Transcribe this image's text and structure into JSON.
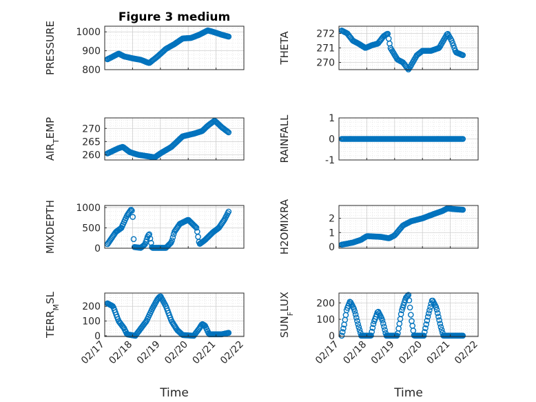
{
  "figure": {
    "title": "Figure 3 medium",
    "marker_color": "#0072BD",
    "axis_color": "#262626",
    "grid_color": "#dcdcdc"
  },
  "chart_data": [
    {
      "type": "scatter",
      "panel": "top-left",
      "title": "Figure 3 medium",
      "ylabel": "PRESSURE",
      "ylabel_parts": [
        {
          "t": "PRESSURE"
        }
      ],
      "ylim": [
        800,
        1030
      ],
      "yticks": [
        800,
        900,
        1000
      ],
      "xlim": [
        0,
        5
      ],
      "xtick_labels": [],
      "x_range": [
        0.1,
        4.45
      ],
      "anchors": [
        [
          0.1,
          855
        ],
        [
          0.3,
          870
        ],
        [
          0.5,
          885
        ],
        [
          0.7,
          870
        ],
        [
          1.0,
          860
        ],
        [
          1.3,
          852
        ],
        [
          1.5,
          840
        ],
        [
          1.6,
          835
        ],
        [
          1.9,
          870
        ],
        [
          2.2,
          910
        ],
        [
          2.5,
          935
        ],
        [
          2.8,
          965
        ],
        [
          3.1,
          968
        ],
        [
          3.4,
          985
        ],
        [
          3.7,
          1008
        ],
        [
          3.9,
          1000
        ],
        [
          4.2,
          985
        ],
        [
          4.45,
          975
        ]
      ],
      "npoints": 130
    },
    {
      "type": "scatter",
      "panel": "top-right",
      "ylabel": "THETA",
      "ylabel_parts": [
        {
          "t": "THETA"
        }
      ],
      "ylim": [
        269.5,
        272.5
      ],
      "yticks": [
        270,
        271,
        272
      ],
      "xlim": [
        0,
        5
      ],
      "xtick_labels": [],
      "x_range": [
        0.1,
        4.45
      ],
      "anchors": [
        [
          0.1,
          272.2
        ],
        [
          0.3,
          272.0
        ],
        [
          0.5,
          271.5
        ],
        [
          0.7,
          271.3
        ],
        [
          0.95,
          271.0
        ],
        [
          1.2,
          271.2
        ],
        [
          1.4,
          271.3
        ],
        [
          1.6,
          271.8
        ],
        [
          1.75,
          272.0
        ],
        [
          1.85,
          271.0
        ],
        [
          2.1,
          270.2
        ],
        [
          2.3,
          270.0
        ],
        [
          2.5,
          269.5
        ],
        [
          2.8,
          270.5
        ],
        [
          3.0,
          270.8
        ],
        [
          3.3,
          270.8
        ],
        [
          3.6,
          271.0
        ],
        [
          3.9,
          272.0
        ],
        [
          4.05,
          271.5
        ],
        [
          4.2,
          270.7
        ],
        [
          4.45,
          270.5
        ]
      ],
      "npoints": 130
    },
    {
      "type": "scatter",
      "panel": "row2-left",
      "ylabel": "AIR_TEMP",
      "ylabel_parts": [
        {
          "t": "AIR"
        },
        {
          "t": "T",
          "sub": true
        },
        {
          "t": "EMP"
        }
      ],
      "ylim": [
        258,
        274
      ],
      "yticks": [
        260,
        265,
        270
      ],
      "xlim": [
        0,
        5
      ],
      "xtick_labels": [],
      "x_range": [
        0.1,
        4.45
      ],
      "anchors": [
        [
          0.1,
          260.5
        ],
        [
          0.5,
          262.5
        ],
        [
          0.65,
          263.0
        ],
        [
          0.9,
          261.0
        ],
        [
          1.2,
          260.0
        ],
        [
          1.5,
          259.5
        ],
        [
          1.8,
          259.0
        ],
        [
          2.0,
          260.5
        ],
        [
          2.4,
          263.0
        ],
        [
          2.8,
          267.0
        ],
        [
          3.2,
          268.0
        ],
        [
          3.5,
          269.0
        ],
        [
          3.7,
          271.0
        ],
        [
          3.95,
          273.0
        ],
        [
          4.2,
          270.5
        ],
        [
          4.45,
          268.5
        ]
      ],
      "npoints": 130
    },
    {
      "type": "scatter",
      "panel": "row2-right",
      "ylabel": "RAINFALL",
      "ylabel_parts": [
        {
          "t": "RAINFALL"
        }
      ],
      "ylim": [
        -1,
        1
      ],
      "yticks": [
        -1,
        0,
        1
      ],
      "xlim": [
        0,
        5
      ],
      "xtick_labels": [],
      "x_range": [
        0.1,
        4.45
      ],
      "anchors": [
        [
          0.1,
          0
        ],
        [
          4.45,
          0
        ]
      ],
      "npoints": 120
    },
    {
      "type": "scatter",
      "panel": "row3-left",
      "ylabel": "MIXDEPTH",
      "ylabel_parts": [
        {
          "t": "MIXDEPTH"
        }
      ],
      "ylim": [
        0,
        1050
      ],
      "yticks": [
        0,
        500,
        1000
      ],
      "xlim": [
        0,
        5
      ],
      "xtick_labels": [],
      "x_range": [
        0.1,
        4.45
      ],
      "anchors": [
        [
          0.1,
          100
        ],
        [
          0.4,
          400
        ],
        [
          0.6,
          500
        ],
        [
          0.8,
          800
        ],
        [
          0.95,
          950
        ],
        [
          1.0,
          900
        ],
        [
          1.05,
          30
        ],
        [
          1.3,
          10
        ],
        [
          1.45,
          100
        ],
        [
          1.55,
          300
        ],
        [
          1.6,
          350
        ],
        [
          1.7,
          10
        ],
        [
          2.2,
          10
        ],
        [
          2.4,
          150
        ],
        [
          2.5,
          400
        ],
        [
          2.7,
          600
        ],
        [
          3.0,
          700
        ],
        [
          3.3,
          500
        ],
        [
          3.4,
          100
        ],
        [
          3.6,
          200
        ],
        [
          3.9,
          400
        ],
        [
          4.1,
          500
        ],
        [
          4.3,
          700
        ],
        [
          4.45,
          900
        ]
      ],
      "npoints": 140
    },
    {
      "type": "scatter",
      "panel": "row3-right",
      "ylabel": "H2OMIXRA",
      "ylabel_parts": [
        {
          "t": "H2OMIXRA"
        }
      ],
      "ylim": [
        -0.1,
        2.9
      ],
      "yticks": [
        0,
        1,
        2
      ],
      "xlim": [
        0,
        5
      ],
      "xtick_labels": [],
      "x_range": [
        0.1,
        4.45
      ],
      "anchors": [
        [
          0.1,
          0.15
        ],
        [
          0.5,
          0.3
        ],
        [
          0.8,
          0.5
        ],
        [
          1.0,
          0.75
        ],
        [
          1.5,
          0.7
        ],
        [
          1.8,
          0.6
        ],
        [
          2.0,
          0.8
        ],
        [
          2.3,
          1.5
        ],
        [
          2.6,
          1.8
        ],
        [
          3.0,
          2.0
        ],
        [
          3.4,
          2.3
        ],
        [
          3.7,
          2.5
        ],
        [
          3.9,
          2.7
        ],
        [
          4.1,
          2.65
        ],
        [
          4.45,
          2.6
        ]
      ],
      "npoints": 130
    },
    {
      "type": "scatter",
      "panel": "bottom-left",
      "ylabel": "TERR_MSL",
      "ylabel_parts": [
        {
          "t": "TERR"
        },
        {
          "t": "M",
          "sub": true
        },
        {
          "t": "SL"
        }
      ],
      "ylim": [
        -5,
        290
      ],
      "yticks": [
        0,
        100,
        200
      ],
      "xlim": [
        0,
        5
      ],
      "xtick_labels": [
        "02/17",
        "02/18",
        "02/19",
        "02/20",
        "02/21",
        "02/22"
      ],
      "xlabel": "Time",
      "x_range": [
        0.1,
        4.45
      ],
      "anchors": [
        [
          0.1,
          220
        ],
        [
          0.3,
          200
        ],
        [
          0.5,
          100
        ],
        [
          0.7,
          50
        ],
        [
          0.8,
          10
        ],
        [
          1.1,
          0
        ],
        [
          1.3,
          50
        ],
        [
          1.5,
          100
        ],
        [
          1.7,
          180
        ],
        [
          1.9,
          250
        ],
        [
          2.0,
          270
        ],
        [
          2.2,
          200
        ],
        [
          2.4,
          100
        ],
        [
          2.6,
          40
        ],
        [
          2.8,
          5
        ],
        [
          3.2,
          0
        ],
        [
          3.4,
          50
        ],
        [
          3.5,
          80
        ],
        [
          3.6,
          70
        ],
        [
          3.75,
          10
        ],
        [
          4.2,
          10
        ],
        [
          4.45,
          20
        ]
      ],
      "npoints": 140
    },
    {
      "type": "scatter",
      "panel": "bottom-right",
      "ylabel": "SUN_FLUX",
      "ylabel_parts": [
        {
          "t": "SUN"
        },
        {
          "t": "F",
          "sub": true
        },
        {
          "t": "LUX"
        }
      ],
      "ylim": [
        -5,
        260
      ],
      "yticks": [
        0,
        100,
        200
      ],
      "xlim": [
        0,
        5
      ],
      "xtick_labels": [
        "02/17",
        "02/18",
        "02/19",
        "02/20",
        "02/21",
        "02/22"
      ],
      "xlabel": "Time",
      "x_range": [
        0.1,
        4.45
      ],
      "anchors": [
        [
          0.1,
          0
        ],
        [
          0.18,
          60
        ],
        [
          0.28,
          160
        ],
        [
          0.4,
          210
        ],
        [
          0.55,
          160
        ],
        [
          0.7,
          60
        ],
        [
          0.8,
          0
        ],
        [
          1.15,
          0
        ],
        [
          1.25,
          80
        ],
        [
          1.4,
          150
        ],
        [
          1.55,
          100
        ],
        [
          1.7,
          0
        ],
        [
          2.1,
          0
        ],
        [
          2.25,
          150
        ],
        [
          2.4,
          230
        ],
        [
          2.5,
          250
        ],
        [
          2.6,
          100
        ],
        [
          2.7,
          0
        ],
        [
          3.05,
          0
        ],
        [
          3.2,
          120
        ],
        [
          3.35,
          220
        ],
        [
          3.5,
          170
        ],
        [
          3.65,
          60
        ],
        [
          3.75,
          0
        ],
        [
          4.45,
          0
        ]
      ],
      "npoints": 150
    }
  ]
}
